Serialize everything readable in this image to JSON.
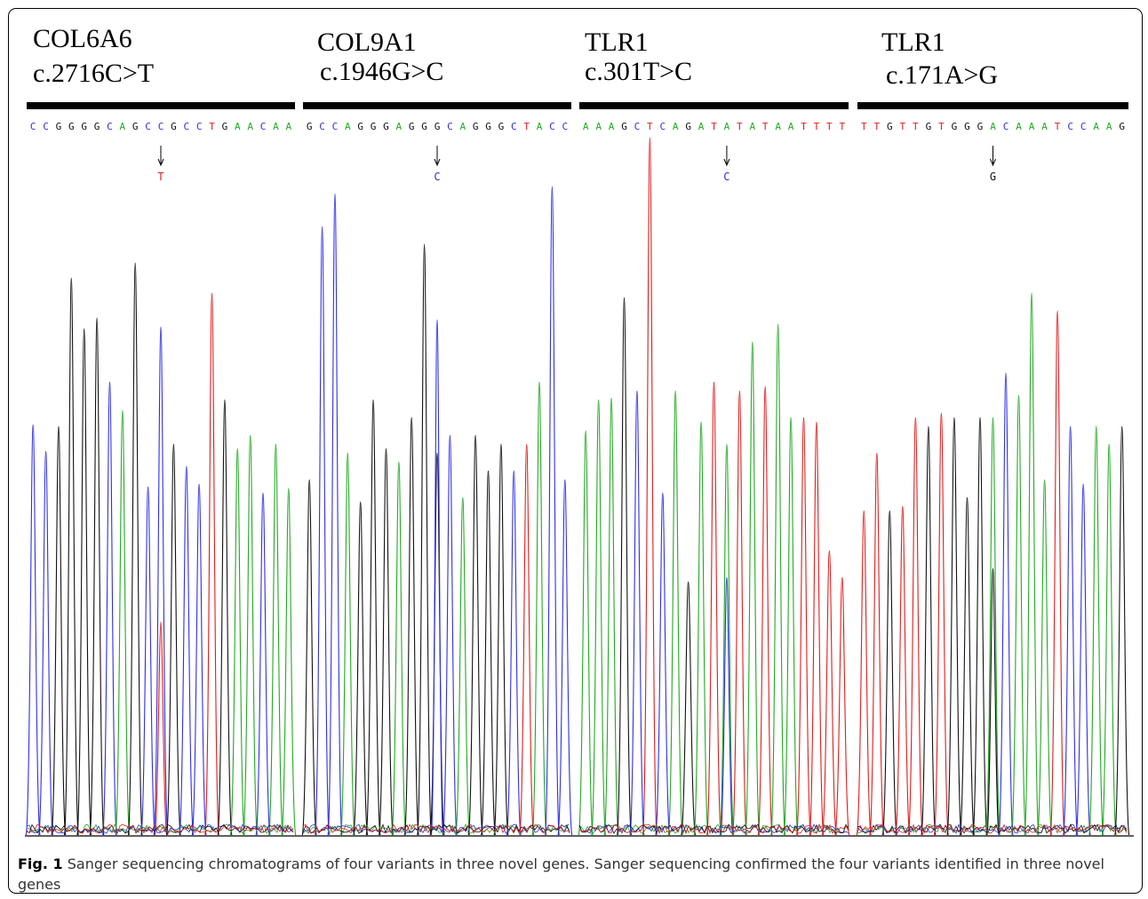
{
  "panels": [
    {
      "gene": "COL6A6",
      "variant": "c.2716C>T",
      "sequence": "CCGGGGCAGCCGCCTGAACAA",
      "alt_base": "T",
      "alt_index": 10
    },
    {
      "gene": "COL9A1",
      "variant": "c.1946G>C",
      "sequence": "GCCAGGGAGGGCAGGGCTACC",
      "alt_base": "C",
      "alt_index": 10
    },
    {
      "gene": "TLR1",
      "variant": "c.301T>C",
      "sequence": "AAAGCTCAGATATATAATTTT",
      "alt_base": "C",
      "alt_index": 11
    },
    {
      "gene": "TLR1",
      "variant": "c.171A>G",
      "sequence": "TTGTTGTGGGACAAATCCAAG",
      "alt_base": "G",
      "alt_index": 10
    }
  ],
  "base_colors": {
    "A": "#22a822",
    "C": "#2e2ee6",
    "G": "#111111",
    "T": "#e01c1c"
  },
  "caption": {
    "label": "Fig. 1",
    "text": " Sanger sequencing chromatograms of four variants in three novel genes. Sanger sequencing confirmed the four variants identified in three novel genes"
  },
  "chart_data": {
    "type": "line",
    "series": [
      {
        "name": "A",
        "color": "#22a822"
      },
      {
        "name": "C",
        "color": "#2e2ee6"
      },
      {
        "name": "G",
        "color": "#111111"
      },
      {
        "name": "T",
        "color": "#e01c1c"
      }
    ]
  }
}
